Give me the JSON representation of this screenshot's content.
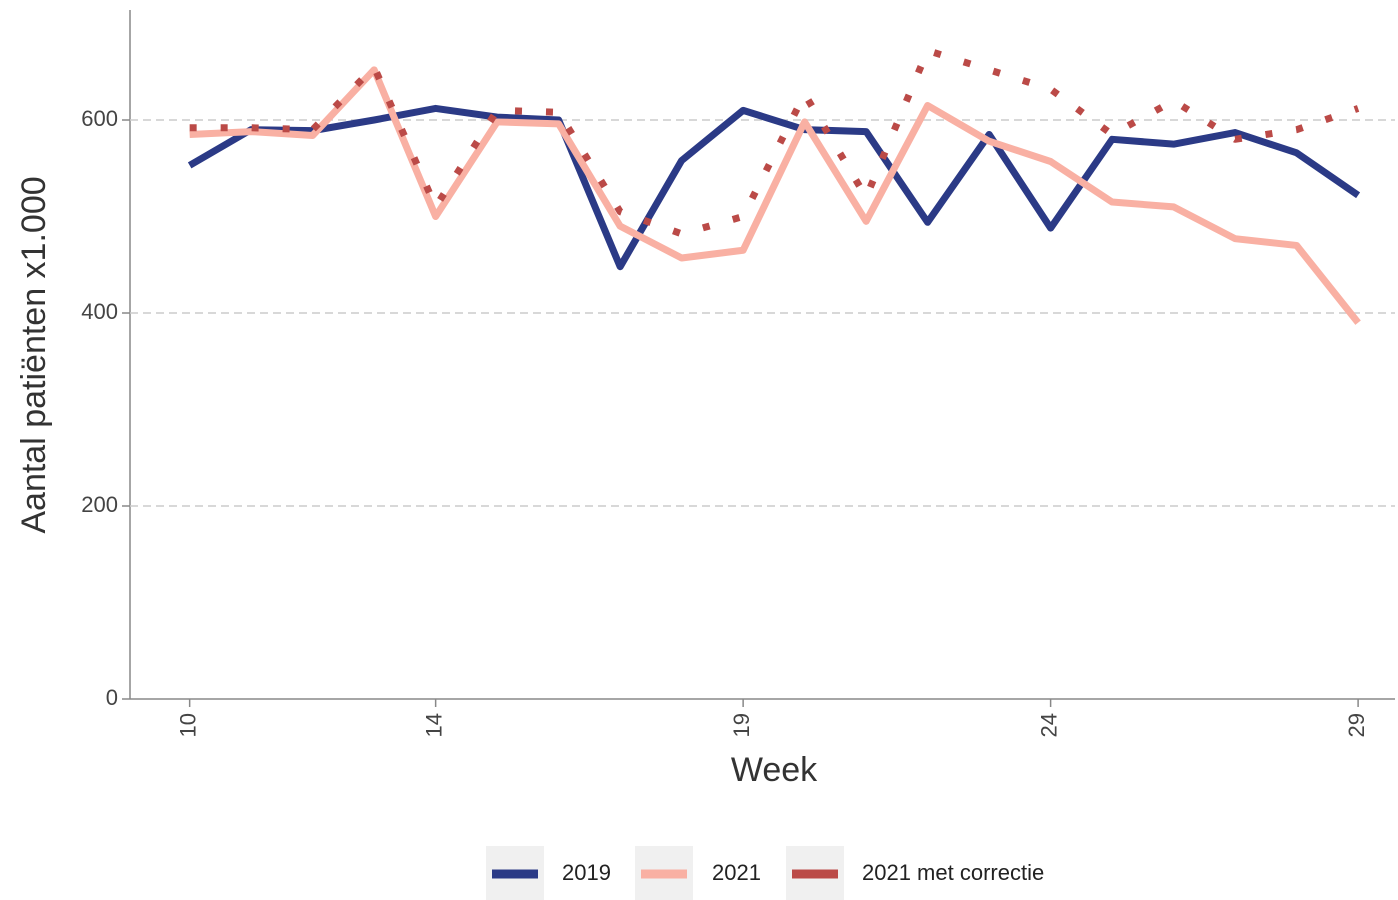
{
  "chart_data": {
    "type": "line",
    "x_label": "Week",
    "y_label": "Aantal patiënten x1.000",
    "x": [
      10,
      11,
      12,
      13,
      14,
      15,
      16,
      17,
      18,
      19,
      20,
      21,
      22,
      23,
      24,
      25,
      26,
      27,
      28,
      29
    ],
    "series": [
      {
        "name": "2019",
        "color": "#2b3a86",
        "linestyle": "solid",
        "values": [
          553,
          590,
          589,
          600,
          612,
          603,
          600,
          448,
          558,
          610,
          590,
          588,
          494,
          585,
          488,
          580,
          575,
          587,
          566,
          522
        ]
      },
      {
        "name": "2021",
        "color": "#f9b0a3",
        "linestyle": "solid",
        "values": [
          585,
          588,
          584,
          652,
          500,
          598,
          596,
          490,
          457,
          465,
          598,
          495,
          615,
          578,
          557,
          515,
          510,
          477,
          470,
          390
        ]
      },
      {
        "name": "2021 met correctie",
        "color": "#bb4a47",
        "linestyle": "dotted",
        "values": [
          592,
          592,
          590,
          655,
          510,
          610,
          608,
          505,
          482,
          500,
          627,
          520,
          672,
          652,
          632,
          585,
          620,
          580,
          590,
          612
        ]
      }
    ],
    "xlim": [
      9.03,
      29.6
    ],
    "ylim": [
      0,
      714
    ],
    "xticks": [
      10,
      14,
      19,
      24,
      29
    ],
    "yticks": [
      0,
      200,
      400,
      600
    ],
    "grid": true,
    "legend_position": "bottom"
  }
}
